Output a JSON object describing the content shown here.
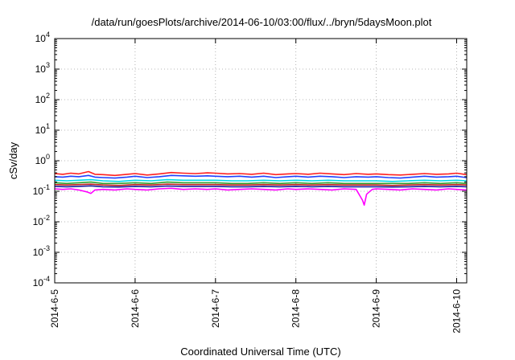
{
  "chart_data": {
    "type": "line",
    "title": "/data/run/goesPlots/archive/2014-06-10/03:00/flux/../bryn/5daysMoon.plot",
    "xlabel": "Coordinated Universal Time (UTC)",
    "ylabel": "cSv/day",
    "yscale": "log",
    "ylim": [
      0.0001,
      10000
    ],
    "xlim": [
      "2014-06-05T00:00",
      "2014-06-10T03:00"
    ],
    "grid": true,
    "x_ticks": [
      {
        "date": "2014-06-05",
        "label": "2014-6-5"
      },
      {
        "date": "2014-06-06",
        "label": "2014-6-6"
      },
      {
        "date": "2014-06-07",
        "label": "2014-6-7"
      },
      {
        "date": "2014-06-08",
        "label": "2014-6-8"
      },
      {
        "date": "2014-06-09",
        "label": "2014-6-9"
      },
      {
        "date": "2014-06-10",
        "label": "2014-6-10"
      }
    ],
    "y_ticks": [
      {
        "value": 0.0001,
        "base": "10",
        "exp": "-4"
      },
      {
        "value": 0.001,
        "base": "10",
        "exp": "-3"
      },
      {
        "value": 0.01,
        "base": "10",
        "exp": "-2"
      },
      {
        "value": 0.1,
        "base": "10",
        "exp": "-1"
      },
      {
        "value": 1,
        "base": "10",
        "exp": "0"
      },
      {
        "value": 10,
        "base": "10",
        "exp": "1"
      },
      {
        "value": 100,
        "base": "10",
        "exp": "2"
      },
      {
        "value": 1000,
        "base": "10",
        "exp": "3"
      },
      {
        "value": 10000,
        "base": "10",
        "exp": "4"
      }
    ],
    "series": [
      {
        "color": "#ff2020",
        "values": [
          [
            0,
            0.38
          ],
          [
            0.1,
            0.36
          ],
          [
            0.2,
            0.39
          ],
          [
            0.3,
            0.37
          ],
          [
            0.42,
            0.44
          ],
          [
            0.5,
            0.36
          ],
          [
            0.6,
            0.35
          ],
          [
            0.75,
            0.33
          ],
          [
            0.9,
            0.36
          ],
          [
            1.0,
            0.38
          ],
          [
            1.15,
            0.34
          ],
          [
            1.3,
            0.37
          ],
          [
            1.45,
            0.41
          ],
          [
            1.6,
            0.39
          ],
          [
            1.75,
            0.38
          ],
          [
            1.9,
            0.4
          ],
          [
            2.0,
            0.39
          ],
          [
            2.15,
            0.37
          ],
          [
            2.3,
            0.38
          ],
          [
            2.45,
            0.36
          ],
          [
            2.6,
            0.39
          ],
          [
            2.75,
            0.35
          ],
          [
            2.9,
            0.37
          ],
          [
            3.0,
            0.38
          ],
          [
            3.15,
            0.36
          ],
          [
            3.3,
            0.39
          ],
          [
            3.45,
            0.37
          ],
          [
            3.6,
            0.35
          ],
          [
            3.75,
            0.38
          ],
          [
            3.9,
            0.36
          ],
          [
            4.0,
            0.37
          ],
          [
            4.15,
            0.35
          ],
          [
            4.3,
            0.34
          ],
          [
            4.45,
            0.36
          ],
          [
            4.6,
            0.38
          ],
          [
            4.75,
            0.36
          ],
          [
            4.9,
            0.37
          ],
          [
            5.0,
            0.39
          ],
          [
            5.12,
            0.35
          ]
        ]
      },
      {
        "color": "#2040ff",
        "values": [
          [
            0,
            0.3
          ],
          [
            0.1,
            0.29
          ],
          [
            0.2,
            0.31
          ],
          [
            0.3,
            0.3
          ],
          [
            0.42,
            0.33
          ],
          [
            0.5,
            0.29
          ],
          [
            0.6,
            0.28
          ],
          [
            0.75,
            0.27
          ],
          [
            0.9,
            0.29
          ],
          [
            1.0,
            0.31
          ],
          [
            1.15,
            0.28
          ],
          [
            1.3,
            0.3
          ],
          [
            1.45,
            0.33
          ],
          [
            1.6,
            0.32
          ],
          [
            1.75,
            0.31
          ],
          [
            1.9,
            0.32
          ],
          [
            2.0,
            0.31
          ],
          [
            2.15,
            0.3
          ],
          [
            2.3,
            0.31
          ],
          [
            2.45,
            0.29
          ],
          [
            2.6,
            0.31
          ],
          [
            2.75,
            0.28
          ],
          [
            2.9,
            0.3
          ],
          [
            3.0,
            0.31
          ],
          [
            3.15,
            0.29
          ],
          [
            3.3,
            0.31
          ],
          [
            3.45,
            0.3
          ],
          [
            3.6,
            0.28
          ],
          [
            3.75,
            0.3
          ],
          [
            3.9,
            0.29
          ],
          [
            4.0,
            0.3
          ],
          [
            4.15,
            0.28
          ],
          [
            4.3,
            0.27
          ],
          [
            4.45,
            0.29
          ],
          [
            4.6,
            0.31
          ],
          [
            4.75,
            0.29
          ],
          [
            4.9,
            0.3
          ],
          [
            5.0,
            0.31
          ],
          [
            5.12,
            0.28
          ]
        ]
      },
      {
        "color": "#00d8e8",
        "values": [
          [
            0,
            0.23
          ],
          [
            0.15,
            0.22
          ],
          [
            0.3,
            0.23
          ],
          [
            0.45,
            0.24
          ],
          [
            0.6,
            0.22
          ],
          [
            0.8,
            0.21
          ],
          [
            1.0,
            0.23
          ],
          [
            1.2,
            0.22
          ],
          [
            1.4,
            0.24
          ],
          [
            1.6,
            0.23
          ],
          [
            1.8,
            0.23
          ],
          [
            2.0,
            0.23
          ],
          [
            2.2,
            0.22
          ],
          [
            2.4,
            0.22
          ],
          [
            2.6,
            0.23
          ],
          [
            2.8,
            0.22
          ],
          [
            3.0,
            0.23
          ],
          [
            3.2,
            0.22
          ],
          [
            3.4,
            0.23
          ],
          [
            3.6,
            0.22
          ],
          [
            3.8,
            0.22
          ],
          [
            4.0,
            0.22
          ],
          [
            4.2,
            0.21
          ],
          [
            4.4,
            0.22
          ],
          [
            4.6,
            0.23
          ],
          [
            4.8,
            0.22
          ],
          [
            5.0,
            0.23
          ],
          [
            5.12,
            0.22
          ]
        ]
      },
      {
        "color": "#30a030",
        "values": [
          [
            0,
            0.19
          ],
          [
            0.15,
            0.18
          ],
          [
            0.3,
            0.19
          ],
          [
            0.45,
            0.2
          ],
          [
            0.6,
            0.18
          ],
          [
            0.8,
            0.18
          ],
          [
            1.0,
            0.19
          ],
          [
            1.2,
            0.18
          ],
          [
            1.4,
            0.2
          ],
          [
            1.6,
            0.19
          ],
          [
            1.8,
            0.19
          ],
          [
            2.0,
            0.19
          ],
          [
            2.2,
            0.18
          ],
          [
            2.4,
            0.18
          ],
          [
            2.6,
            0.19
          ],
          [
            2.8,
            0.18
          ],
          [
            3.0,
            0.19
          ],
          [
            3.2,
            0.18
          ],
          [
            3.4,
            0.19
          ],
          [
            3.6,
            0.18
          ],
          [
            3.8,
            0.18
          ],
          [
            4.0,
            0.18
          ],
          [
            4.2,
            0.18
          ],
          [
            4.4,
            0.18
          ],
          [
            4.6,
            0.19
          ],
          [
            4.8,
            0.18
          ],
          [
            5.0,
            0.19
          ],
          [
            5.12,
            0.18
          ]
        ]
      },
      {
        "color": "#c02020",
        "values": [
          [
            0,
            0.165
          ],
          [
            0.15,
            0.16
          ],
          [
            0.3,
            0.165
          ],
          [
            0.45,
            0.17
          ],
          [
            0.6,
            0.16
          ],
          [
            0.8,
            0.155
          ],
          [
            1.0,
            0.165
          ],
          [
            1.2,
            0.16
          ],
          [
            1.4,
            0.17
          ],
          [
            1.6,
            0.165
          ],
          [
            1.8,
            0.165
          ],
          [
            2.0,
            0.165
          ],
          [
            2.2,
            0.16
          ],
          [
            2.4,
            0.16
          ],
          [
            2.6,
            0.165
          ],
          [
            2.8,
            0.16
          ],
          [
            3.0,
            0.165
          ],
          [
            3.2,
            0.16
          ],
          [
            3.4,
            0.165
          ],
          [
            3.6,
            0.16
          ],
          [
            3.8,
            0.16
          ],
          [
            4.0,
            0.16
          ],
          [
            4.2,
            0.155
          ],
          [
            4.4,
            0.16
          ],
          [
            4.6,
            0.165
          ],
          [
            4.8,
            0.16
          ],
          [
            5.0,
            0.165
          ],
          [
            5.12,
            0.16
          ]
        ]
      },
      {
        "color": "#1a1aa0",
        "values": [
          [
            0,
            0.145
          ],
          [
            0.15,
            0.14
          ],
          [
            0.3,
            0.145
          ],
          [
            0.45,
            0.15
          ],
          [
            0.6,
            0.14
          ],
          [
            0.8,
            0.138
          ],
          [
            1.0,
            0.145
          ],
          [
            1.2,
            0.14
          ],
          [
            1.4,
            0.148
          ],
          [
            1.6,
            0.145
          ],
          [
            1.8,
            0.145
          ],
          [
            2.0,
            0.145
          ],
          [
            2.2,
            0.14
          ],
          [
            2.4,
            0.14
          ],
          [
            2.6,
            0.145
          ],
          [
            2.8,
            0.14
          ],
          [
            3.0,
            0.145
          ],
          [
            3.2,
            0.14
          ],
          [
            3.4,
            0.145
          ],
          [
            3.6,
            0.14
          ],
          [
            3.8,
            0.14
          ],
          [
            4.0,
            0.14
          ],
          [
            4.2,
            0.138
          ],
          [
            4.4,
            0.14
          ],
          [
            4.6,
            0.145
          ],
          [
            4.8,
            0.14
          ],
          [
            5.0,
            0.145
          ],
          [
            5.12,
            0.14
          ]
        ]
      },
      {
        "color": "#ff00ff",
        "values": [
          [
            0,
            0.12
          ],
          [
            0.1,
            0.115
          ],
          [
            0.2,
            0.12
          ],
          [
            0.3,
            0.11
          ],
          [
            0.4,
            0.095
          ],
          [
            0.45,
            0.085
          ],
          [
            0.5,
            0.11
          ],
          [
            0.6,
            0.115
          ],
          [
            0.75,
            0.11
          ],
          [
            0.9,
            0.12
          ],
          [
            1.0,
            0.115
          ],
          [
            1.15,
            0.11
          ],
          [
            1.3,
            0.12
          ],
          [
            1.45,
            0.125
          ],
          [
            1.6,
            0.115
          ],
          [
            1.75,
            0.12
          ],
          [
            1.9,
            0.115
          ],
          [
            2.0,
            0.12
          ],
          [
            2.15,
            0.11
          ],
          [
            2.3,
            0.115
          ],
          [
            2.45,
            0.12
          ],
          [
            2.6,
            0.115
          ],
          [
            2.75,
            0.11
          ],
          [
            2.9,
            0.12
          ],
          [
            3.0,
            0.115
          ],
          [
            3.15,
            0.12
          ],
          [
            3.3,
            0.115
          ],
          [
            3.45,
            0.11
          ],
          [
            3.6,
            0.12
          ],
          [
            3.75,
            0.115
          ],
          [
            3.83,
            0.05
          ],
          [
            3.85,
            0.035
          ],
          [
            3.88,
            0.08
          ],
          [
            3.95,
            0.115
          ],
          [
            4.0,
            0.12
          ],
          [
            4.15,
            0.115
          ],
          [
            4.3,
            0.11
          ],
          [
            4.45,
            0.12
          ],
          [
            4.6,
            0.115
          ],
          [
            4.75,
            0.11
          ],
          [
            4.9,
            0.12
          ],
          [
            5.0,
            0.115
          ],
          [
            5.12,
            0.11
          ]
        ]
      }
    ]
  }
}
